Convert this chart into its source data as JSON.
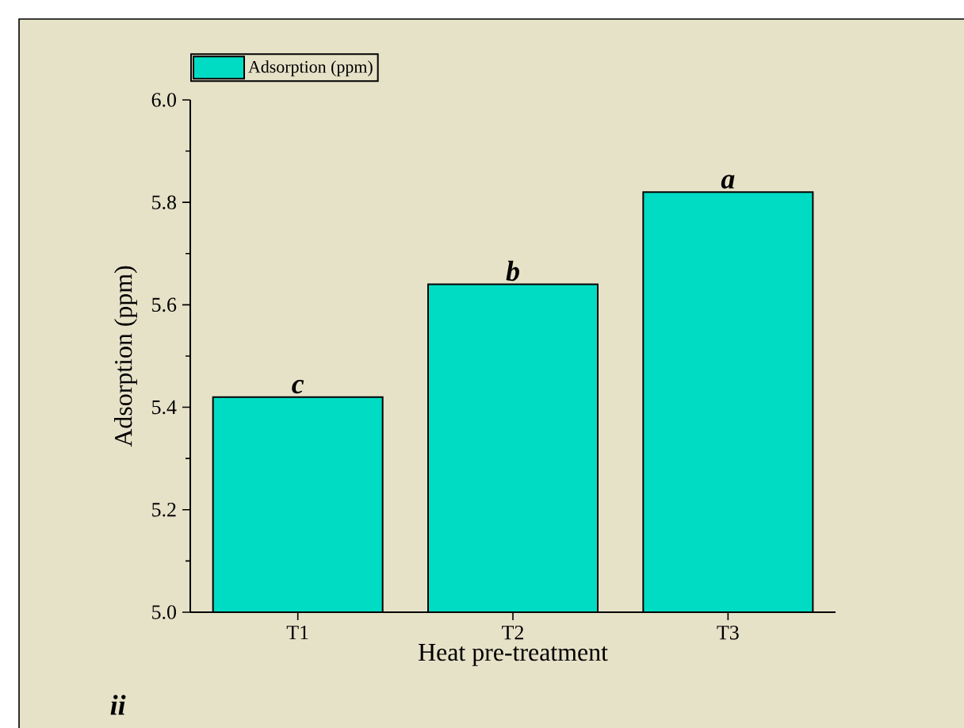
{
  "chart_data": {
    "type": "bar",
    "xlabel": "Heat pre-treatment",
    "ylabel": "Adsorption (ppm)",
    "categories": [
      "T1",
      "T2",
      "T3"
    ],
    "series": [
      {
        "name": "Adsorption (ppm)",
        "color": "#00dcc4",
        "values": [
          5.42,
          5.64,
          5.82
        ]
      }
    ],
    "ylim": [
      5.0,
      6.0
    ],
    "yticks": [
      {
        "value": 5.0,
        "label": "5.0"
      },
      5.2,
      5.4,
      5.6,
      5.8,
      {
        "value": 6.0,
        "label": "6.0"
      }
    ],
    "grid": false,
    "legend": "top left",
    "annotations": [
      {
        "text": "c",
        "x": "T1",
        "y": 5.42
      },
      {
        "text": "b",
        "x": "T2",
        "y": 5.64
      },
      {
        "text": "a",
        "x": "T3",
        "y": 5.82
      },
      "ii"
    ]
  }
}
